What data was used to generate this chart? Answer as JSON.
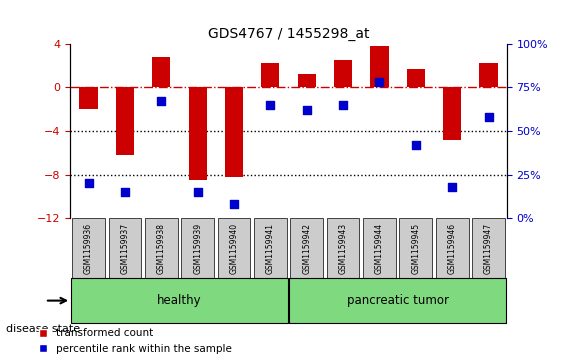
{
  "title": "GDS4767 / 1455298_at",
  "samples": [
    "GSM1159936",
    "GSM1159937",
    "GSM1159938",
    "GSM1159939",
    "GSM1159940",
    "GSM1159941",
    "GSM1159942",
    "GSM1159943",
    "GSM1159944",
    "GSM1159945",
    "GSM1159946",
    "GSM1159947"
  ],
  "red_bars": [
    -2.0,
    -6.2,
    2.8,
    -8.5,
    -8.2,
    2.2,
    1.2,
    2.5,
    3.8,
    1.7,
    -4.8,
    2.2
  ],
  "blue_squares_pct": [
    20,
    15,
    67,
    15,
    8,
    65,
    62,
    65,
    78,
    42,
    18,
    58
  ],
  "ylim_left": [
    -12,
    4
  ],
  "ylim_right": [
    0,
    100
  ],
  "yticks_left": [
    4,
    0,
    -4,
    -8,
    -12
  ],
  "yticks_right": [
    100,
    75,
    50,
    25,
    0
  ],
  "groups": [
    {
      "label": "healthy",
      "start": 0,
      "end": 5
    },
    {
      "label": "pancreatic tumor",
      "start": 6,
      "end": 11
    }
  ],
  "group_colors": [
    "#90EE90",
    "#90EE90"
  ],
  "disease_state_label": "disease state",
  "legend": [
    {
      "label": "transformed count",
      "color": "#CC0000",
      "marker": "s"
    },
    {
      "label": "percentile rank within the sample",
      "color": "#0000CC",
      "marker": "s"
    }
  ],
  "bar_color": "#CC0000",
  "square_color": "#0000CC",
  "hline_color": "#CC0000",
  "dotted_line_color": "black",
  "background_color": "white",
  "plot_bg": "white",
  "tick_bg": "#CCCCCC"
}
